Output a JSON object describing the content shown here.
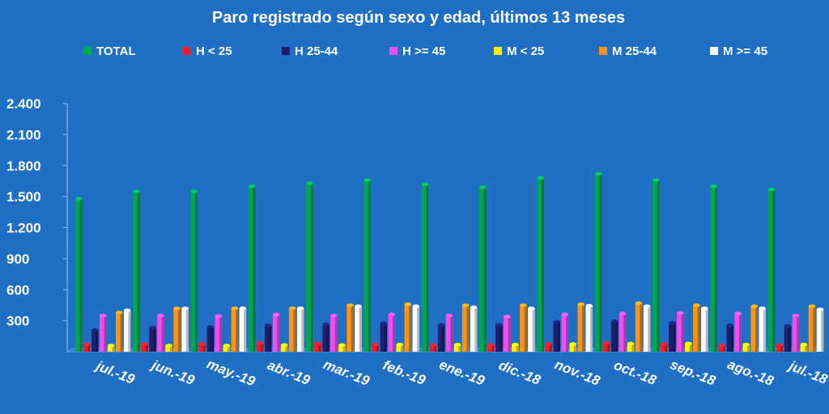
{
  "chart_data": {
    "type": "bar",
    "title": "Paro registrado según sexo y edad, últimos 13 meses",
    "xlabel": "",
    "ylabel": "",
    "ylim": [
      0,
      2400
    ],
    "yticks": [
      "300",
      "600",
      "900",
      "1.200",
      "1.500",
      "1.800",
      "2.100",
      "2.400"
    ],
    "ytick_values": [
      300,
      600,
      900,
      1200,
      1500,
      1800,
      2100,
      2400
    ],
    "grid": false,
    "legend_position": "top",
    "categories": [
      "jul.-19",
      "jun.-19",
      "may.-19",
      "abr.-19",
      "mar.-19",
      "feb.-19",
      "ene.-19",
      "dic.-18",
      "nov.-18",
      "oct.-18",
      "sep.-18",
      "ago.-18",
      "jul.-18"
    ],
    "series": [
      {
        "name": "TOTAL",
        "color": "#00a651",
        "values": [
          1480,
          1550,
          1550,
          1600,
          1630,
          1660,
          1620,
          1590,
          1680,
          1720,
          1660,
          1600,
          1570
        ]
      },
      {
        "name": "H < 25",
        "color": "#ee1c24",
        "values": [
          70,
          75,
          75,
          85,
          80,
          70,
          65,
          65,
          75,
          85,
          75,
          60,
          65
        ]
      },
      {
        "name": "H 25-44",
        "color": "#1b1f6e",
        "values": [
          210,
          235,
          240,
          255,
          265,
          275,
          260,
          260,
          290,
          295,
          280,
          255,
          250
        ]
      },
      {
        "name": "H >= 45",
        "color": "#f04df0",
        "values": [
          350,
          350,
          345,
          360,
          350,
          360,
          350,
          340,
          360,
          370,
          375,
          370,
          350
        ]
      },
      {
        "name": "M < 25",
        "color": "#fff200",
        "values": [
          60,
          60,
          60,
          65,
          65,
          70,
          70,
          70,
          75,
          80,
          80,
          70,
          70
        ]
      },
      {
        "name": "M 25-44",
        "color": "#f7941d",
        "values": [
          380,
          420,
          420,
          420,
          450,
          460,
          450,
          450,
          460,
          470,
          450,
          440,
          440
        ]
      },
      {
        "name": "M >= 45",
        "color": "#ffffff",
        "values": [
          400,
          420,
          420,
          420,
          440,
          440,
          430,
          420,
          445,
          440,
          420,
          420,
          410
        ]
      }
    ]
  }
}
